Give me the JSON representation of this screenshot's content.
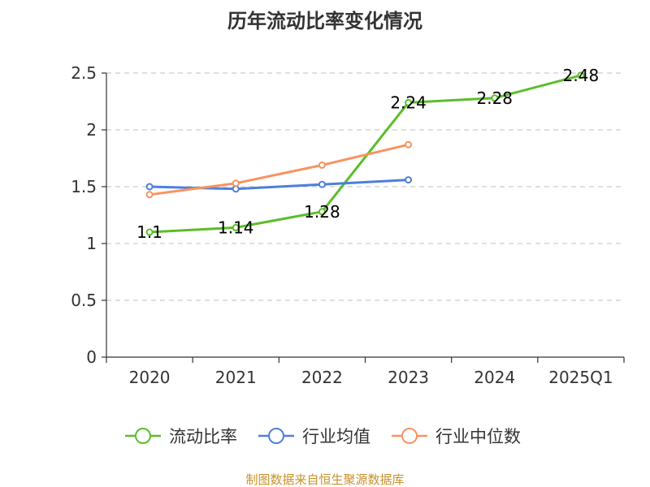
{
  "chart_data": {
    "type": "line",
    "title": "历年流动比率变化情况",
    "categories": [
      "2020",
      "2021",
      "2022",
      "2023",
      "2024",
      "2025Q1"
    ],
    "ylim": [
      0,
      2.5
    ],
    "yticks": [
      0,
      0.5,
      1,
      1.5,
      2,
      2.5
    ],
    "ytick_labels": [
      "0",
      "0.5",
      "1",
      "1.5",
      "2",
      "2.5"
    ],
    "grid": true,
    "legend_position": "bottom",
    "series": [
      {
        "name": "流动比率",
        "color": "#5cbd2a",
        "values": [
          1.1,
          1.14,
          1.28,
          2.24,
          2.28,
          2.48
        ],
        "data_labels": [
          "1.1",
          "1.14",
          "1.28",
          "2.24",
          "2.28",
          "2.48"
        ]
      },
      {
        "name": "行业均值",
        "color": "#4e7fdc",
        "values": [
          1.5,
          1.48,
          1.52,
          1.56,
          null,
          null
        ]
      },
      {
        "name": "行业中位数",
        "color": "#f79360",
        "values": [
          1.43,
          1.53,
          1.69,
          1.87,
          null,
          null
        ]
      }
    ]
  },
  "source_text": "制图数据来自恒生聚源数据库"
}
